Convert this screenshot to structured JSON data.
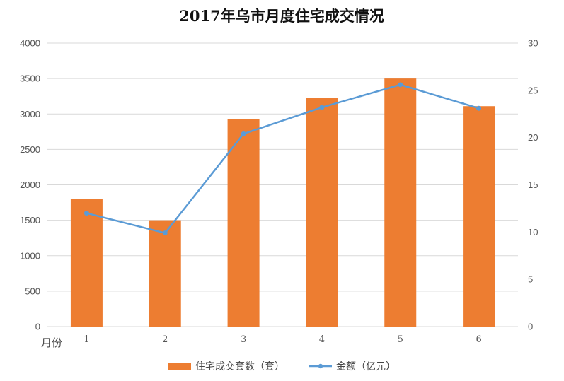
{
  "chart_data": {
    "type": "bar+line",
    "title": "2017年乌市月度住宅成交情况",
    "xlabel": "月份",
    "categories": [
      "1",
      "2",
      "3",
      "4",
      "5",
      "6"
    ],
    "series": [
      {
        "name": "住宅成交套数（套）",
        "type": "bar",
        "axis": "left",
        "color": "#ED7D31",
        "values": [
          1800,
          1500,
          2930,
          3230,
          3500,
          3110
        ]
      },
      {
        "name": "金额（亿元）",
        "type": "line",
        "axis": "right",
        "color": "#5B9BD5",
        "values": [
          12.0,
          9.9,
          20.4,
          23.2,
          25.6,
          23.1
        ]
      }
    ],
    "ylim_left": [
      0,
      4000
    ],
    "yticks_left": [
      "0",
      "500",
      "1000",
      "1500",
      "2000",
      "2500",
      "3000",
      "3500",
      "4000"
    ],
    "ylim_right": [
      0,
      30
    ],
    "yticks_right": [
      "0",
      "5",
      "10",
      "15",
      "20",
      "25",
      "30"
    ],
    "grid": true,
    "legend_position": "bottom"
  }
}
